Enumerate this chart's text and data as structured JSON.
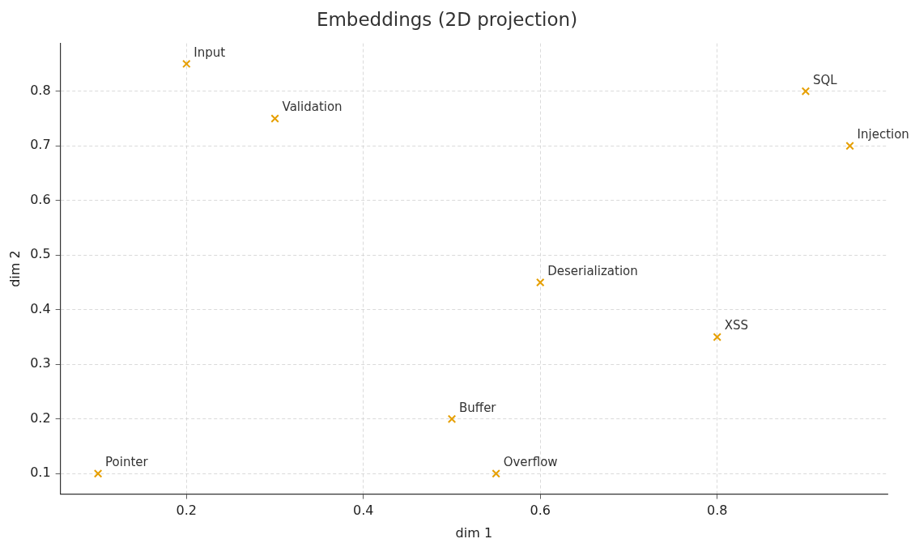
{
  "chart_data": {
    "type": "scatter",
    "title": "Embeddings (2D projection)",
    "xlabel": "dim 1",
    "ylabel": "dim 2",
    "x": [
      0.2,
      0.3,
      0.9,
      0.95,
      0.6,
      0.8,
      0.5,
      0.1,
      0.55
    ],
    "values": [
      0.85,
      0.75,
      0.8,
      0.7,
      0.45,
      0.35,
      0.2,
      0.1,
      0.1
    ],
    "color": "#e69f00",
    "marker": "cross",
    "grid": true,
    "legend": false,
    "xlim": [
      0.0575,
      0.9925
    ],
    "xticks": [
      0.2,
      0.4,
      0.6,
      0.8
    ],
    "ylim": [
      0.0625,
      0.8875
    ],
    "yticks": [
      0.1,
      0.2,
      0.3,
      0.4,
      0.5,
      0.6,
      0.7,
      0.8
    ],
    "annotations": [
      {
        "text": "Input",
        "x": 0.2,
        "y": 0.85
      },
      {
        "text": "Validation",
        "x": 0.3,
        "y": 0.75
      },
      {
        "text": "SQL",
        "x": 0.9,
        "y": 0.8
      },
      {
        "text": "Injection",
        "x": 0.95,
        "y": 0.7
      },
      {
        "text": "Deserialization",
        "x": 0.6,
        "y": 0.45
      },
      {
        "text": "XSS",
        "x": 0.8,
        "y": 0.35
      },
      {
        "text": "Buffer",
        "x": 0.5,
        "y": 0.2
      },
      {
        "text": "Pointer",
        "x": 0.1,
        "y": 0.1
      },
      {
        "text": "Overflow",
        "x": 0.55,
        "y": 0.1
      }
    ]
  }
}
